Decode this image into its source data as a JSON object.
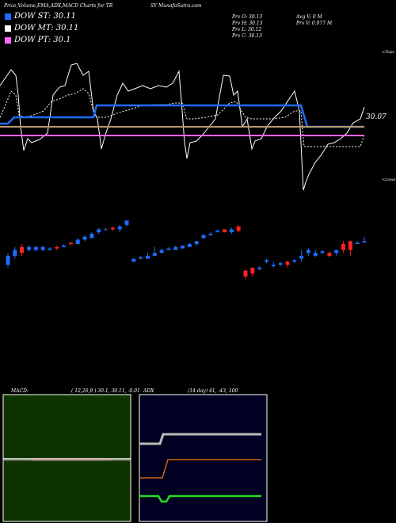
{
  "header": {
    "title_left": "Price,Volume,EMA,ADX,MACD Charts for TR",
    "title_right": "SY MunafaSutra.com"
  },
  "legend": [
    {
      "label": "DOW ST: 30.11",
      "color": "#1e6cff"
    },
    {
      "label": "DOW MT: 30.11",
      "color": "#ffffff"
    },
    {
      "label": "DOW PT: 30.1",
      "color": "#ff66ff"
    }
  ],
  "stats": {
    "prv_o": "Prv  O: 30.13",
    "prv_h": "Prv  H: 30.13",
    "prv_l": "Prv  L: 30.12",
    "prv_c": "Prv  C: 30.13",
    "avg_v": "Avg V: 0  M",
    "prv_v": "Prv  V: 0.077 M"
  },
  "axis": {
    "price_label": "30.07",
    "upper": "<Tops",
    "lower": "<Lows"
  },
  "colors": {
    "background": "#000000",
    "up": "#1e6cff",
    "down": "#ff2222",
    "ema_short": "#1e6cff",
    "ema_mid": "#b89a6a",
    "ema_long": "#ff66ff",
    "macd_panel": "#0f3300",
    "adx_panel": "#000022"
  },
  "macd": {
    "title": "MACD:",
    "params": "( 12,26,9 ) 30.1,  30.11, -0.01"
  },
  "adx": {
    "title": "ADX",
    "params": "(14  day) 41,  -43,  100"
  },
  "chart_data": {
    "type": "candlestick",
    "title": "Price,Volume,EMA,ADX,MACD Charts for TRSY MunafaSutra.com",
    "ylabel_value": 30.07,
    "ylim": [
      29.9,
      30.25
    ],
    "candles": [
      {
        "o": 29.97,
        "c": 30.0,
        "h": 30.01,
        "l": 29.96,
        "d": "up"
      },
      {
        "o": 30.0,
        "c": 30.02,
        "h": 30.03,
        "l": 29.99,
        "d": "up"
      },
      {
        "o": 30.01,
        "c": 30.03,
        "h": 30.04,
        "l": 30.0,
        "d": "down"
      },
      {
        "o": 30.02,
        "c": 30.03,
        "h": 30.035,
        "l": 30.015,
        "d": "up"
      },
      {
        "o": 30.02,
        "c": 30.03,
        "h": 30.035,
        "l": 30.015,
        "d": "up"
      },
      {
        "o": 30.02,
        "c": 30.03,
        "h": 30.035,
        "l": 30.015,
        "d": "up"
      },
      {
        "o": 30.02,
        "c": 30.025,
        "h": 30.03,
        "l": 30.02,
        "d": "up"
      },
      {
        "o": 30.025,
        "c": 30.03,
        "h": 30.035,
        "l": 30.02,
        "d": "down"
      },
      {
        "o": 30.03,
        "c": 30.035,
        "h": 30.04,
        "l": 30.03,
        "d": "up"
      },
      {
        "o": 30.04,
        "c": 30.045,
        "h": 30.045,
        "l": 30.035,
        "d": "down"
      },
      {
        "o": 30.04,
        "c": 30.055,
        "h": 30.06,
        "l": 30.04,
        "d": "up"
      },
      {
        "o": 30.055,
        "c": 30.065,
        "h": 30.07,
        "l": 30.05,
        "d": "up"
      },
      {
        "o": 30.06,
        "c": 30.075,
        "h": 30.08,
        "l": 30.06,
        "d": "up"
      },
      {
        "o": 30.08,
        "c": 30.09,
        "h": 30.095,
        "l": 30.075,
        "d": "up"
      },
      {
        "o": 30.09,
        "c": 30.09,
        "h": 30.095,
        "l": 30.09,
        "d": "up"
      },
      {
        "o": 30.09,
        "c": 30.095,
        "h": 30.1,
        "l": 30.085,
        "d": "down"
      },
      {
        "o": 30.09,
        "c": 30.1,
        "h": 30.105,
        "l": 30.08,
        "d": "up"
      },
      {
        "o": 30.105,
        "c": 30.12,
        "h": 30.12,
        "l": 30.1,
        "d": "up"
      },
      {
        "o": 29.98,
        "c": 29.99,
        "h": 29.99,
        "l": 29.98,
        "d": "up"
      },
      {
        "o": 29.99,
        "c": 29.995,
        "h": 30.0,
        "l": 29.99,
        "d": "up"
      },
      {
        "o": 29.99,
        "c": 30.0,
        "h": 30.01,
        "l": 29.99,
        "d": "up"
      },
      {
        "o": 30.0,
        "c": 30.01,
        "h": 30.03,
        "l": 30.0,
        "d": "up"
      },
      {
        "o": 30.01,
        "c": 30.02,
        "h": 30.025,
        "l": 30.01,
        "d": "up"
      },
      {
        "o": 30.02,
        "c": 30.025,
        "h": 30.03,
        "l": 30.02,
        "d": "up"
      },
      {
        "o": 30.02,
        "c": 30.03,
        "h": 30.035,
        "l": 30.02,
        "d": "up"
      },
      {
        "o": 30.025,
        "c": 30.035,
        "h": 30.035,
        "l": 30.025,
        "d": "up"
      },
      {
        "o": 30.03,
        "c": 30.04,
        "h": 30.045,
        "l": 30.03,
        "d": "up"
      },
      {
        "o": 30.04,
        "c": 30.05,
        "h": 30.05,
        "l": 30.035,
        "d": "up"
      },
      {
        "o": 30.06,
        "c": 30.07,
        "h": 30.075,
        "l": 30.06,
        "d": "up"
      },
      {
        "o": 30.07,
        "c": 30.075,
        "h": 30.08,
        "l": 30.07,
        "d": "up"
      },
      {
        "o": 30.08,
        "c": 30.085,
        "h": 30.09,
        "l": 30.08,
        "d": "up"
      },
      {
        "o": 30.08,
        "c": 30.09,
        "h": 30.09,
        "l": 30.08,
        "d": "down"
      },
      {
        "o": 30.08,
        "c": 30.09,
        "h": 30.095,
        "l": 30.075,
        "d": "up"
      },
      {
        "o": 30.085,
        "c": 30.1,
        "h": 30.105,
        "l": 30.08,
        "d": "down"
      },
      {
        "o": 29.93,
        "c": 29.95,
        "h": 29.95,
        "l": 29.92,
        "d": "down"
      },
      {
        "o": 29.94,
        "c": 29.96,
        "h": 29.96,
        "l": 29.93,
        "d": "down"
      },
      {
        "o": 29.955,
        "c": 29.96,
        "h": 29.965,
        "l": 29.95,
        "d": "up"
      },
      {
        "o": 29.98,
        "c": 29.985,
        "h": 29.99,
        "l": 29.975,
        "d": "up"
      },
      {
        "o": 29.965,
        "c": 29.97,
        "h": 29.98,
        "l": 29.96,
        "d": "up"
      },
      {
        "o": 29.97,
        "c": 29.975,
        "h": 29.98,
        "l": 29.965,
        "d": "up"
      },
      {
        "o": 29.97,
        "c": 29.98,
        "h": 29.985,
        "l": 29.96,
        "d": "down"
      },
      {
        "o": 29.98,
        "c": 29.985,
        "h": 29.99,
        "l": 29.975,
        "d": "up"
      },
      {
        "o": 29.99,
        "c": 30.0,
        "h": 30.02,
        "l": 29.98,
        "d": "up"
      },
      {
        "o": 30.01,
        "c": 30.02,
        "h": 30.025,
        "l": 30.0,
        "d": "up"
      },
      {
        "o": 30.0,
        "c": 30.01,
        "h": 30.02,
        "l": 29.995,
        "d": "up"
      },
      {
        "o": 30.01,
        "c": 30.015,
        "h": 30.02,
        "l": 30.005,
        "d": "up"
      },
      {
        "o": 30.0,
        "c": 30.01,
        "h": 30.015,
        "l": 29.995,
        "d": "down"
      },
      {
        "o": 30.01,
        "c": 30.02,
        "h": 30.02,
        "l": 30.0,
        "d": "up"
      },
      {
        "o": 30.02,
        "c": 30.04,
        "h": 30.05,
        "l": 30.01,
        "d": "down"
      },
      {
        "o": 30.02,
        "c": 30.05,
        "h": 30.05,
        "l": 30.0,
        "d": "down"
      },
      {
        "o": 30.04,
        "c": 30.045,
        "h": 30.05,
        "l": 30.04,
        "d": "up"
      },
      {
        "o": 30.045,
        "c": 30.05,
        "h": 30.065,
        "l": 30.045,
        "d": "up"
      }
    ]
  }
}
